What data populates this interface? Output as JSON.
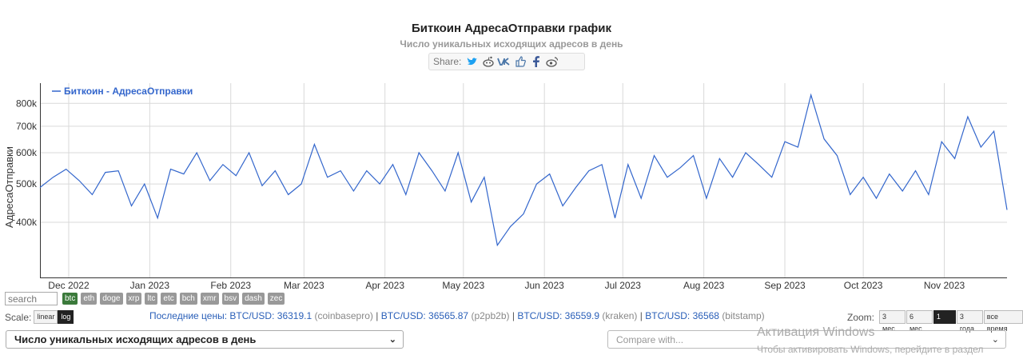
{
  "header": {
    "title": "Биткоин АдресаОтправки график",
    "subtitle": "Число уникальных исходящих адресов в день",
    "share_label": "Share:"
  },
  "share_icons": [
    "twitter-icon",
    "reddit-icon",
    "vk-icon",
    "like-icon",
    "facebook-icon",
    "weibo-icon"
  ],
  "controls": {
    "search_placeholder": "search",
    "coins": [
      "btc",
      "eth",
      "doge",
      "xrp",
      "ltc",
      "etc",
      "bch",
      "xmr",
      "bsv",
      "dash",
      "zec"
    ],
    "active_coin": "btc",
    "scale_label": "Scale:",
    "scale_options": [
      "linear",
      "log"
    ],
    "scale_selected": "log",
    "zoom_label": "Zoom:",
    "zoom_options": [
      "3 мес.",
      "6 мес.",
      "1 год",
      "3 года",
      "все время"
    ],
    "zoom_selected": "1 год",
    "metric_select": "Число уникальных исходящих адресов в день",
    "compare_placeholder": "Compare with..."
  },
  "prices": {
    "label": "Последние цены:",
    "items": [
      {
        "pair": "BTC/USD:",
        "value": "36319.1",
        "exchange": "(coinbasepro)"
      },
      {
        "pair": "BTC/USD:",
        "value": "36565.87",
        "exchange": "(p2pb2b)"
      },
      {
        "pair": "BTC/USD:",
        "value": "36559.9",
        "exchange": "(kraken)"
      },
      {
        "pair": "BTC/USD:",
        "value": "36568",
        "exchange": "(bitstamp)"
      }
    ]
  },
  "watermark": {
    "line1": "Активация Windows",
    "line2": "Чтобы активировать Windows, перейдите в раздел"
  },
  "colors": {
    "series": "#3366cc",
    "grid": "#d9d9d9"
  },
  "chart_data": {
    "type": "line",
    "ylabel": "АдресаОтправки",
    "scale": "log",
    "ylim": [
      290000,
      900000
    ],
    "yticks": [
      400000,
      500000,
      600000,
      700000,
      800000
    ],
    "ytick_labels": [
      "400k",
      "500k",
      "600k",
      "700k",
      "800k"
    ],
    "xlim": [
      "2022-11-20",
      "2023-11-25"
    ],
    "xtick_dates": [
      "2022-12-01",
      "2023-01-01",
      "2023-02-01",
      "2023-03-01",
      "2023-04-01",
      "2023-05-01",
      "2023-06-01",
      "2023-07-01",
      "2023-08-01",
      "2023-09-01",
      "2023-10-01",
      "2023-11-01"
    ],
    "xtick_labels": [
      "Dec 2022",
      "Jan 2023",
      "Feb 2023",
      "Mar 2023",
      "Apr 2023",
      "May 2023",
      "Jun 2023",
      "Jul 2023",
      "Aug 2023",
      "Sep 2023",
      "Oct 2023",
      "Nov 2023"
    ],
    "legend": "top-left",
    "grid": true,
    "series": [
      {
        "name": "Биткоин - АдресаОтправки",
        "x": [
          "2022-11-20",
          "2022-11-25",
          "2022-11-30",
          "2022-12-05",
          "2022-12-10",
          "2022-12-15",
          "2022-12-20",
          "2022-12-25",
          "2022-12-30",
          "2023-01-04",
          "2023-01-09",
          "2023-01-14",
          "2023-01-19",
          "2023-01-24",
          "2023-01-29",
          "2023-02-03",
          "2023-02-08",
          "2023-02-13",
          "2023-02-18",
          "2023-02-23",
          "2023-02-28",
          "2023-03-05",
          "2023-03-10",
          "2023-03-15",
          "2023-03-20",
          "2023-03-25",
          "2023-03-30",
          "2023-04-04",
          "2023-04-09",
          "2023-04-14",
          "2023-04-19",
          "2023-04-24",
          "2023-04-29",
          "2023-05-04",
          "2023-05-09",
          "2023-05-14",
          "2023-05-19",
          "2023-05-24",
          "2023-05-29",
          "2023-06-03",
          "2023-06-08",
          "2023-06-13",
          "2023-06-18",
          "2023-06-23",
          "2023-06-28",
          "2023-07-03",
          "2023-07-08",
          "2023-07-13",
          "2023-07-18",
          "2023-07-23",
          "2023-07-28",
          "2023-08-02",
          "2023-08-07",
          "2023-08-12",
          "2023-08-17",
          "2023-08-22",
          "2023-08-27",
          "2023-09-01",
          "2023-09-06",
          "2023-09-11",
          "2023-09-16",
          "2023-09-21",
          "2023-09-26",
          "2023-10-01",
          "2023-10-06",
          "2023-10-11",
          "2023-10-16",
          "2023-10-21",
          "2023-10-26",
          "2023-10-31",
          "2023-11-05",
          "2023-11-10",
          "2023-11-15",
          "2023-11-20",
          "2023-11-25"
        ],
        "values": [
          490000,
          520000,
          545000,
          510000,
          470000,
          535000,
          540000,
          440000,
          500000,
          410000,
          545000,
          530000,
          600000,
          510000,
          560000,
          525000,
          600000,
          495000,
          540000,
          470000,
          500000,
          630000,
          520000,
          540000,
          480000,
          540000,
          500000,
          560000,
          470000,
          600000,
          540000,
          480000,
          600000,
          450000,
          520000,
          350000,
          390000,
          420000,
          500000,
          530000,
          440000,
          490000,
          540000,
          560000,
          410000,
          560000,
          460000,
          590000,
          520000,
          550000,
          590000,
          460000,
          580000,
          520000,
          600000,
          560000,
          520000,
          640000,
          620000,
          840000,
          650000,
          590000,
          470000,
          520000,
          460000,
          530000,
          480000,
          540000,
          470000,
          640000,
          580000,
          740000,
          620000,
          680000,
          430000
        ]
      }
    ]
  }
}
